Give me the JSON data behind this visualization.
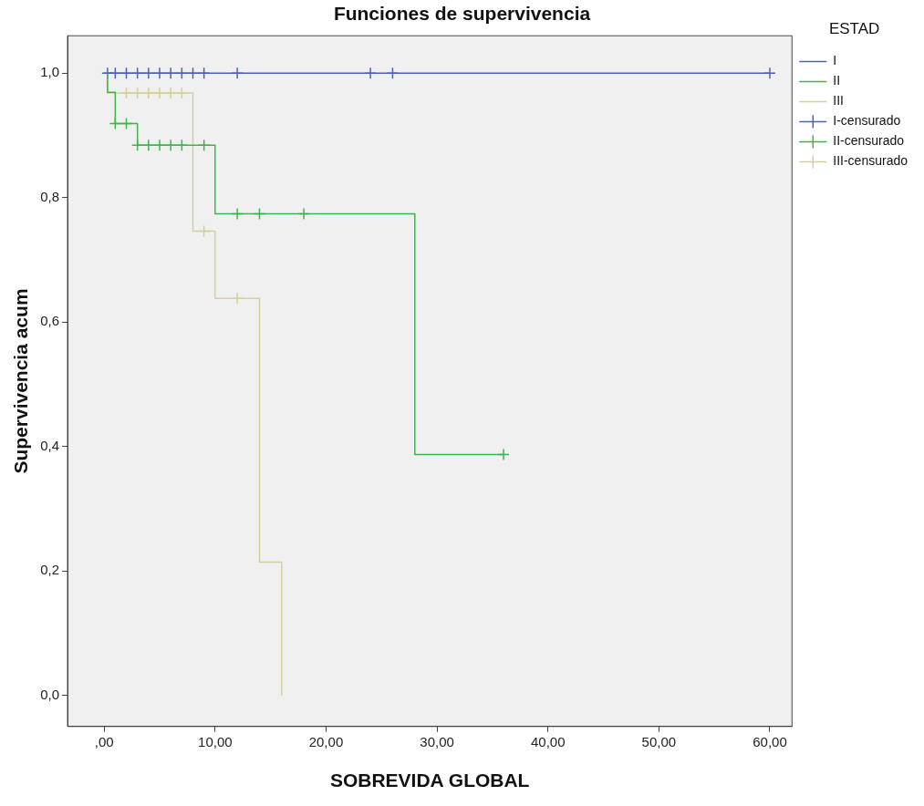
{
  "chart_data": {
    "type": "step",
    "title": "Funciones de supervivencia",
    "xlabel": "SOBREVIDA GLOBAL",
    "ylabel": "Supervivencia acum",
    "legend_title": "ESTAD",
    "legend": "right",
    "grid": false,
    "xlim": [
      -3.3,
      62
    ],
    "ylim": [
      -0.05,
      1.06
    ],
    "xticks": [
      {
        "value": 0,
        "label": ",00"
      },
      {
        "value": 10,
        "label": "10,00"
      },
      {
        "value": 20,
        "label": "20,00"
      },
      {
        "value": 30,
        "label": "30,00"
      },
      {
        "value": 40,
        "label": "40,00"
      },
      {
        "value": 50,
        "label": "50,00"
      },
      {
        "value": 60,
        "label": "60,00"
      }
    ],
    "yticks": [
      {
        "value": 0,
        "label": "0,0"
      },
      {
        "value": 0.2,
        "label": "0,2"
      },
      {
        "value": 0.4,
        "label": "0,4"
      },
      {
        "value": 0.6,
        "label": "0,6"
      },
      {
        "value": 0.8,
        "label": "0,8"
      },
      {
        "value": 1,
        "label": "1,0"
      }
    ],
    "series": [
      {
        "name": "I",
        "marker": "none",
        "color": "#4a62b8",
        "x": [
          0,
          60
        ],
        "values": [
          1,
          1
        ]
      },
      {
        "name": "II",
        "marker": "none",
        "color": "#3cb54a",
        "x": [
          0,
          0.3,
          1,
          3,
          10,
          28,
          36
        ],
        "values": [
          1,
          0.969,
          0.919,
          0.884,
          0.774,
          0.387,
          0.387
        ]
      },
      {
        "name": "III",
        "marker": "none",
        "color": "#d6cf9c",
        "x": [
          0,
          0.3,
          8,
          10,
          14,
          16
        ],
        "values": [
          1,
          0.968,
          0.746,
          0.638,
          0.214,
          0
        ]
      },
      {
        "name": "I-censurado",
        "type": "scatter",
        "marker": "cross",
        "color": "#4a62b8",
        "x": [
          0.3,
          1,
          2,
          3,
          4,
          5,
          6,
          7,
          8,
          9,
          12,
          24,
          26,
          60
        ],
        "values": [
          1,
          1,
          1,
          1,
          1,
          1,
          1,
          1,
          1,
          1,
          1,
          1,
          1,
          1
        ]
      },
      {
        "name": "II-censurado",
        "type": "scatter",
        "marker": "cross",
        "color": "#3cb54a",
        "x": [
          1,
          2,
          3,
          4,
          5,
          6,
          7,
          9,
          12,
          14,
          18,
          36
        ],
        "values": [
          0.919,
          0.919,
          0.884,
          0.884,
          0.884,
          0.884,
          0.884,
          0.884,
          0.774,
          0.774,
          0.774,
          0.387
        ]
      },
      {
        "name": "III-censurado",
        "type": "scatter",
        "marker": "cross",
        "color": "#d6cf9c",
        "x": [
          2,
          3,
          4,
          5,
          6,
          7,
          9,
          12
        ],
        "values": [
          0.968,
          0.968,
          0.968,
          0.968,
          0.968,
          0.968,
          0.746,
          0.638
        ]
      }
    ]
  }
}
